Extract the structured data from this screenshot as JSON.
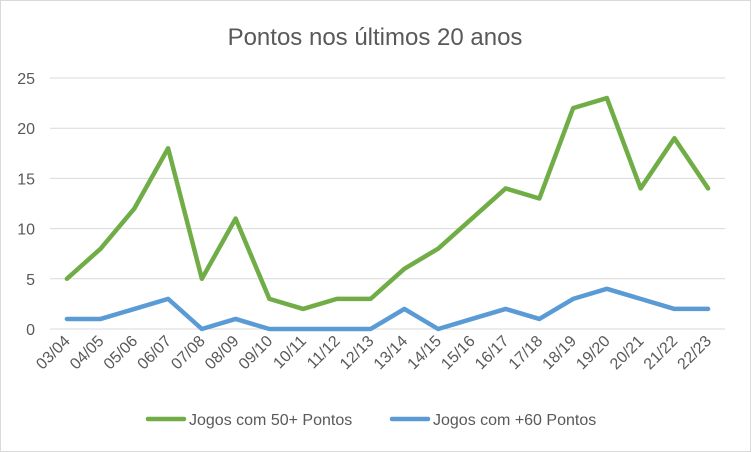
{
  "chart_data": {
    "type": "line",
    "title": "Pontos nos últimos 20 anos",
    "xlabel": "",
    "ylabel": "",
    "categories": [
      "03/04",
      "04/05",
      "05/06",
      "06/07",
      "07/08",
      "08/09",
      "09/10",
      "10/11",
      "11/12",
      "12/13",
      "13/14",
      "14/15",
      "15/16",
      "16/17",
      "17/18",
      "18/19",
      "19/20",
      "20/21",
      "21/22",
      "22/23"
    ],
    "series": [
      {
        "name": "Jogos com 50+ Pontos",
        "color": "#70ad47",
        "values": [
          5,
          8,
          12,
          18,
          5,
          11,
          3,
          2,
          3,
          3,
          6,
          8,
          11,
          14,
          13,
          22,
          23,
          14,
          19,
          14
        ]
      },
      {
        "name": "Jogos com +60 Pontos",
        "color": "#5b9bd5",
        "values": [
          1,
          1,
          2,
          3,
          0,
          1,
          0,
          0,
          0,
          0,
          2,
          0,
          1,
          2,
          1,
          3,
          4,
          3,
          2,
          2
        ]
      }
    ],
    "ylim": [
      0,
      25
    ],
    "yticks": [
      0,
      5,
      10,
      15,
      20,
      25
    ],
    "grid": true,
    "legend": "bottom"
  }
}
